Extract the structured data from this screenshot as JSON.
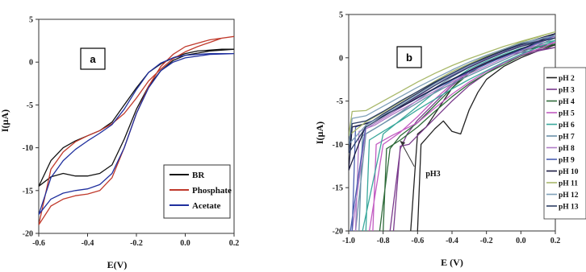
{
  "chart_data": [
    {
      "type": "line",
      "panel_label": "a",
      "xlabel": "E(V)",
      "ylabel": "I(µA)",
      "xlim": [
        -0.6,
        0.2
      ],
      "ylim": [
        -20,
        5
      ],
      "xticks": [
        "-0.6",
        "-0.4",
        "-0.2",
        "0.0",
        "0.2"
      ],
      "yticks": [
        "5",
        "0",
        "-5",
        "-10",
        "-15",
        "-20"
      ],
      "legend_position": "bottom-right",
      "series": [
        {
          "name": "BR",
          "color": "#111111",
          "x": [
            0.2,
            0.1,
            0.0,
            -0.05,
            -0.1,
            -0.15,
            -0.2,
            -0.25,
            -0.3,
            -0.35,
            -0.4,
            -0.45,
            -0.5,
            -0.55,
            -0.6,
            -0.55,
            -0.5,
            -0.45,
            -0.4,
            -0.35,
            -0.3,
            -0.25,
            -0.2,
            -0.15,
            -0.1,
            -0.05,
            0.0,
            0.05,
            0.1,
            0.15,
            0.2
          ],
          "y": [
            1.5,
            1.3,
            0.8,
            0.2,
            -1.0,
            -2.8,
            -5.5,
            -9.0,
            -12.0,
            -13.0,
            -13.3,
            -13.3,
            -13.0,
            -13.4,
            -14.5,
            -11.5,
            -10.0,
            -9.2,
            -8.6,
            -8.0,
            -7.0,
            -5.0,
            -3.0,
            -1.2,
            -0.2,
            0.5,
            1.0,
            1.3,
            1.4,
            1.5,
            1.5
          ]
        },
        {
          "name": "Phosphate",
          "color": "#c0392b",
          "x": [
            0.2,
            0.1,
            0.0,
            -0.05,
            -0.1,
            -0.15,
            -0.2,
            -0.25,
            -0.3,
            -0.35,
            -0.4,
            -0.45,
            -0.5,
            -0.55,
            -0.6,
            -0.55,
            -0.5,
            -0.45,
            -0.4,
            -0.35,
            -0.3,
            -0.25,
            -0.2,
            -0.15,
            -0.1,
            -0.05,
            0.0,
            0.05,
            0.1,
            0.15,
            0.2
          ],
          "y": [
            3.0,
            2.6,
            1.8,
            0.9,
            -0.5,
            -2.8,
            -6.0,
            -10.0,
            -13.5,
            -15.0,
            -15.4,
            -15.6,
            -16.0,
            -16.8,
            -19.0,
            -12.5,
            -10.5,
            -9.3,
            -8.6,
            -8.0,
            -7.2,
            -6.0,
            -4.2,
            -2.2,
            -0.8,
            0.4,
            1.2,
            1.8,
            2.3,
            2.8,
            3.0
          ]
        },
        {
          "name": "Acetate",
          "color": "#1f2f9e",
          "x": [
            0.2,
            0.1,
            0.0,
            -0.05,
            -0.1,
            -0.15,
            -0.2,
            -0.25,
            -0.3,
            -0.35,
            -0.4,
            -0.45,
            -0.5,
            -0.55,
            -0.6,
            -0.55,
            -0.5,
            -0.45,
            -0.4,
            -0.35,
            -0.3,
            -0.25,
            -0.2,
            -0.15,
            -0.1,
            -0.05,
            0.0,
            0.05,
            0.1,
            0.15,
            0.2
          ],
          "y": [
            1.0,
            0.9,
            0.5,
            0.0,
            -1.0,
            -3.0,
            -6.0,
            -10.0,
            -13.0,
            -14.3,
            -14.8,
            -15.0,
            -15.3,
            -16.0,
            -17.8,
            -13.5,
            -11.5,
            -10.2,
            -9.2,
            -8.3,
            -7.3,
            -5.5,
            -3.2,
            -1.2,
            -0.1,
            0.5,
            0.8,
            0.9,
            1.0,
            1.0,
            1.0
          ]
        }
      ]
    },
    {
      "type": "line",
      "panel_label": "b",
      "xlabel": "E (V)",
      "ylabel": "I(µA)",
      "xlim": [
        -1.0,
        0.2
      ],
      "ylim": [
        -20,
        5
      ],
      "xticks": [
        "-1.0",
        "-0.8",
        "-0.6",
        "-0.4",
        "-0.2",
        "0.0",
        "0.2"
      ],
      "yticks": [
        "5",
        "0",
        "-5",
        "-10",
        "-15",
        "-20"
      ],
      "annotation": {
        "text": "pH3",
        "x": -0.6,
        "y": -13.5,
        "arrow_to": [
          -0.7,
          -9.6
        ]
      },
      "legend_position": "right",
      "series": [
        {
          "name": "pH 2",
          "color": "#222222",
          "x": [
            -0.6,
            -0.58,
            -0.5,
            -0.45,
            -0.4,
            -0.35,
            -0.3,
            -0.25,
            -0.2,
            -0.1,
            0.0,
            0.1,
            0.2,
            0.1,
            0.0,
            -0.1,
            -0.2,
            -0.3,
            -0.4,
            -0.45,
            -0.5,
            -0.55,
            -0.6,
            -0.64
          ],
          "y": [
            -20,
            -10.0,
            -8.2,
            -7.3,
            -8.5,
            -8.8,
            -6.0,
            -4.0,
            -2.5,
            -1.0,
            0.0,
            0.8,
            1.5,
            1.2,
            0.8,
            0.3,
            -0.5,
            -1.5,
            -3.5,
            -5.0,
            -6.5,
            -8.0,
            -8.8,
            -20
          ]
        },
        {
          "name": "pH 3",
          "color": "#7a3b8c",
          "x": [
            -0.74,
            -0.7,
            -0.65,
            -0.6,
            -0.5,
            -0.4,
            -0.3,
            -0.2,
            -0.1,
            0.0,
            0.1,
            0.2,
            0.1,
            0.0,
            -0.1,
            -0.2,
            -0.3,
            -0.4,
            -0.5,
            -0.6,
            -0.66,
            -0.7,
            -0.76
          ],
          "y": [
            -20,
            -10.2,
            -10.0,
            -9.0,
            -7.0,
            -5.0,
            -3.2,
            -1.8,
            -0.6,
            0.2,
            0.8,
            1.2,
            0.9,
            0.6,
            0.2,
            -0.5,
            -1.6,
            -3.2,
            -5.2,
            -7.2,
            -8.8,
            -10.5,
            -20
          ]
        },
        {
          "name": "pH 4",
          "color": "#2f6b3a",
          "x": [
            -0.8,
            -0.78,
            -0.7,
            -0.6,
            -0.5,
            -0.4,
            -0.3,
            -0.2,
            -0.1,
            0.0,
            0.1,
            0.2,
            0.1,
            0.0,
            -0.1,
            -0.2,
            -0.3,
            -0.4,
            -0.5,
            -0.6,
            -0.7,
            -0.76,
            -0.82
          ],
          "y": [
            -20,
            -10.5,
            -9.5,
            -8.0,
            -6.2,
            -4.5,
            -3.0,
            -1.8,
            -0.8,
            0.2,
            1.0,
            1.6,
            1.3,
            0.8,
            0.2,
            -0.6,
            -1.8,
            -3.5,
            -5.5,
            -7.5,
            -9.0,
            -10.5,
            -20
          ]
        },
        {
          "name": "pH 5",
          "color": "#c25cc2",
          "x": [
            -0.86,
            -0.84,
            -0.75,
            -0.65,
            -0.6,
            -0.5,
            -0.4,
            -0.3,
            -0.2,
            -0.1,
            0.0,
            0.1,
            0.2,
            0.1,
            0.0,
            -0.1,
            -0.2,
            -0.3,
            -0.4,
            -0.5,
            -0.6,
            -0.7,
            -0.8,
            -0.88
          ],
          "y": [
            -20,
            -10.0,
            -9.0,
            -8.0,
            -7.5,
            -5.8,
            -4.2,
            -2.8,
            -1.6,
            -0.6,
            0.3,
            1.0,
            1.8,
            1.4,
            0.9,
            0.3,
            -0.5,
            -1.5,
            -3.0,
            -4.8,
            -6.8,
            -8.6,
            -10.0,
            -20
          ]
        },
        {
          "name": "pH 6",
          "color": "#3aa89c",
          "x": [
            -0.9,
            -0.88,
            -0.8,
            -0.7,
            -0.6,
            -0.5,
            -0.4,
            -0.3,
            -0.2,
            -0.1,
            0.0,
            0.1,
            0.2,
            0.1,
            0.0,
            -0.1,
            -0.2,
            -0.3,
            -0.4,
            -0.5,
            -0.6,
            -0.7,
            -0.8,
            -0.92
          ],
          "y": [
            -20,
            -9.5,
            -8.5,
            -7.3,
            -6.0,
            -4.8,
            -3.6,
            -2.5,
            -1.5,
            -0.5,
            0.4,
            1.2,
            2.0,
            1.6,
            1.1,
            0.4,
            -0.4,
            -1.3,
            -2.6,
            -4.0,
            -5.6,
            -7.2,
            -8.8,
            -20
          ]
        },
        {
          "name": "pH 7",
          "color": "#6a8fa8",
          "x": [
            -0.94,
            -0.92,
            -0.85,
            -0.75,
            -0.65,
            -0.55,
            -0.45,
            -0.35,
            -0.25,
            -0.15,
            -0.05,
            0.05,
            0.2,
            0.1,
            0.0,
            -0.1,
            -0.2,
            -0.3,
            -0.4,
            -0.5,
            -0.6,
            -0.7,
            -0.8,
            -0.9,
            -0.96
          ],
          "y": [
            -20,
            -9.0,
            -8.2,
            -7.0,
            -5.8,
            -4.6,
            -3.5,
            -2.5,
            -1.6,
            -0.7,
            0.2,
            1.0,
            2.3,
            1.8,
            1.3,
            0.6,
            -0.2,
            -1.1,
            -2.2,
            -3.5,
            -4.9,
            -6.3,
            -7.6,
            -8.8,
            -20
          ]
        },
        {
          "name": "pH 8",
          "color": "#b07cc6",
          "x": [
            -0.96,
            -0.94,
            -0.85,
            -0.75,
            -0.65,
            -0.55,
            -0.45,
            -0.35,
            -0.25,
            -0.15,
            -0.05,
            0.05,
            0.2,
            0.1,
            0.0,
            -0.1,
            -0.2,
            -0.3,
            -0.4,
            -0.5,
            -0.6,
            -0.7,
            -0.8,
            -0.9,
            -0.98
          ],
          "y": [
            -20,
            -8.5,
            -7.8,
            -6.6,
            -5.5,
            -4.4,
            -3.3,
            -2.3,
            -1.4,
            -0.5,
            0.4,
            1.2,
            2.5,
            2.0,
            1.4,
            0.7,
            -0.1,
            -1.0,
            -2.0,
            -3.2,
            -4.5,
            -5.8,
            -7.0,
            -8.2,
            -20
          ]
        },
        {
          "name": "pH 9",
          "color": "#4b5fb0",
          "x": [
            -0.98,
            -0.96,
            -0.85,
            -0.75,
            -0.65,
            -0.55,
            -0.45,
            -0.35,
            -0.25,
            -0.15,
            -0.05,
            0.05,
            0.2,
            0.1,
            0.0,
            -0.1,
            -0.2,
            -0.3,
            -0.4,
            -0.5,
            -0.6,
            -0.7,
            -0.8,
            -0.9,
            -0.99
          ],
          "y": [
            -20,
            -8.0,
            -7.2,
            -6.2,
            -5.2,
            -4.1,
            -3.1,
            -2.1,
            -1.2,
            -0.3,
            0.5,
            1.3,
            2.6,
            2.1,
            1.5,
            0.8,
            0.0,
            -0.9,
            -1.9,
            -3.0,
            -4.2,
            -5.4,
            -6.6,
            -7.8,
            -20
          ]
        },
        {
          "name": "pH 10",
          "color": "#1a1a40",
          "x": [
            -1.0,
            -0.98,
            -0.88,
            -0.78,
            -0.68,
            -0.58,
            -0.48,
            -0.38,
            -0.28,
            -0.18,
            -0.08,
            0.05,
            0.2,
            0.1,
            0.0,
            -0.1,
            -0.2,
            -0.3,
            -0.4,
            -0.5,
            -0.6,
            -0.7,
            -0.8,
            -0.9,
            -1.0
          ],
          "y": [
            -13.0,
            -8.0,
            -7.5,
            -6.5,
            -5.5,
            -4.4,
            -3.3,
            -2.3,
            -1.3,
            -0.4,
            0.4,
            1.4,
            2.8,
            2.2,
            1.6,
            0.9,
            0.1,
            -0.8,
            -1.8,
            -2.9,
            -4.1,
            -5.3,
            -6.5,
            -7.8,
            -13.0
          ]
        },
        {
          "name": "pH 11",
          "color": "#a8b86a",
          "x": [
            -1.0,
            -0.98,
            -0.9,
            -0.8,
            -0.7,
            -0.6,
            -0.5,
            -0.4,
            -0.3,
            -0.2,
            -0.1,
            0.0,
            0.2,
            0.1,
            0.0,
            -0.1,
            -0.2,
            -0.3,
            -0.4,
            -0.5,
            -0.6,
            -0.7,
            -0.8,
            -0.9,
            -1.0
          ],
          "y": [
            -9.0,
            -6.2,
            -6.1,
            -5.0,
            -3.9,
            -2.8,
            -1.8,
            -0.9,
            -0.1,
            0.6,
            1.3,
            1.9,
            3.0,
            2.4,
            1.8,
            1.0,
            0.2,
            -0.7,
            -1.6,
            -2.7,
            -3.9,
            -5.1,
            -6.3,
            -7.4,
            -9.0
          ]
        },
        {
          "name": "pH 12",
          "color": "#7fa0b8",
          "x": [
            -1.0,
            -0.98,
            -0.9,
            -0.8,
            -0.7,
            -0.6,
            -0.5,
            -0.4,
            -0.3,
            -0.2,
            -0.1,
            0.0,
            0.2,
            0.1,
            0.0,
            -0.1,
            -0.2,
            -0.3,
            -0.4,
            -0.5,
            -0.6,
            -0.7,
            -0.8,
            -0.9,
            -1.0
          ],
          "y": [
            -10.0,
            -7.0,
            -6.7,
            -5.6,
            -4.5,
            -3.4,
            -2.4,
            -1.4,
            -0.5,
            0.3,
            1.0,
            1.7,
            2.6,
            2.1,
            1.5,
            0.8,
            0.0,
            -0.9,
            -1.9,
            -3.0,
            -4.2,
            -5.4,
            -6.6,
            -7.8,
            -10.0
          ]
        },
        {
          "name": "pH 13",
          "color": "#2d3e66",
          "x": [
            -1.0,
            -0.98,
            -0.9,
            -0.8,
            -0.7,
            -0.6,
            -0.5,
            -0.4,
            -0.3,
            -0.2,
            -0.1,
            0.0,
            0.2,
            0.1,
            0.0,
            -0.1,
            -0.2,
            -0.3,
            -0.4,
            -0.5,
            -0.6,
            -0.7,
            -0.8,
            -0.9,
            -1.0
          ],
          "y": [
            -11.0,
            -7.6,
            -7.3,
            -6.2,
            -5.0,
            -3.9,
            -2.8,
            -1.8,
            -0.8,
            0.0,
            0.8,
            1.5,
            2.3,
            1.8,
            1.3,
            0.6,
            -0.2,
            -1.1,
            -2.1,
            -3.2,
            -4.4,
            -5.6,
            -6.8,
            -8.0,
            -11.0
          ]
        }
      ]
    }
  ]
}
